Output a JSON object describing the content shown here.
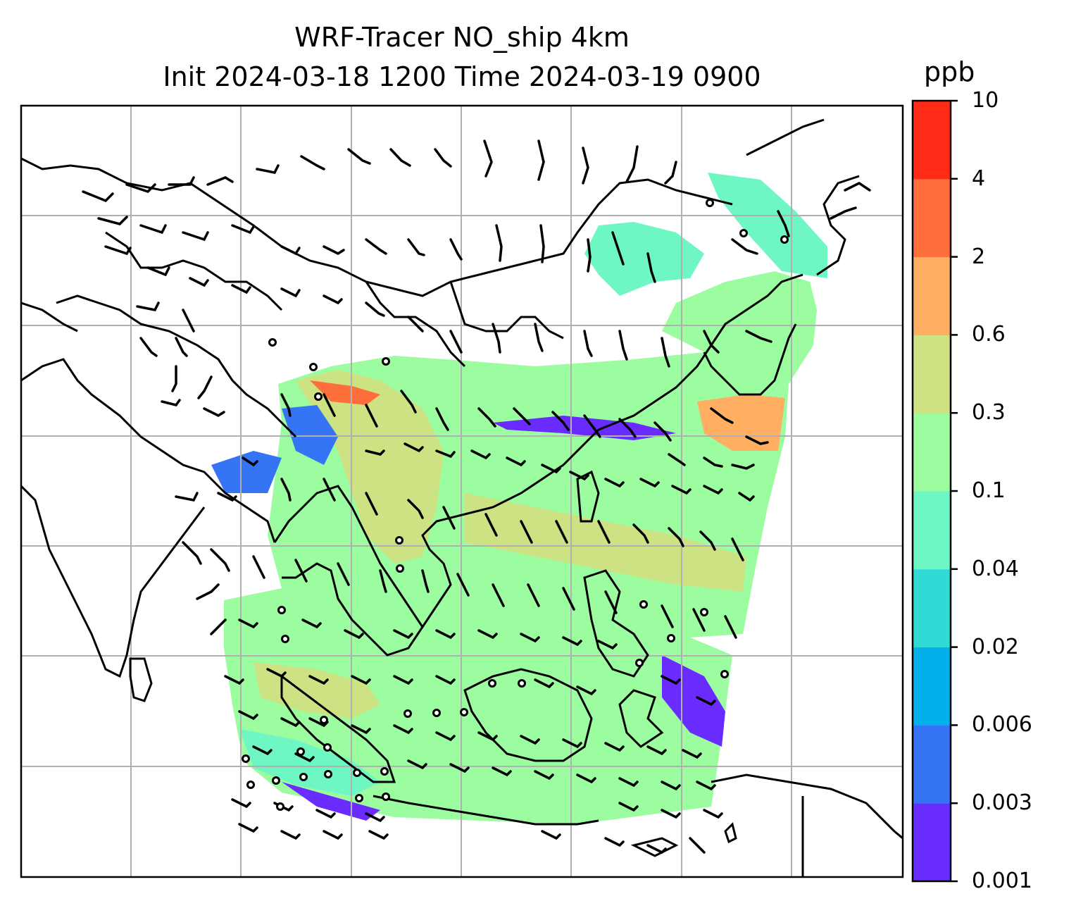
{
  "title": {
    "line1": "WRF-Tracer NO_ship 4km",
    "line2": "Init 2024-03-18 1200 Time 2024-03-19 0900"
  },
  "colorbar": {
    "unit": "ppb",
    "levels": [
      "0.001",
      "0.003",
      "0.006",
      "0.02",
      "0.04",
      "0.1",
      "0.3",
      "0.6",
      "2",
      "4",
      "10"
    ],
    "colors": [
      "#6a2bff",
      "#3574f4",
      "#04b0ea",
      "#30dbd6",
      "#6ef7c2",
      "#9cfca0",
      "#cde283",
      "#ffae62",
      "#ff6f3b",
      "#ff2b16"
    ]
  },
  "map": {
    "gridlines": true,
    "layers": [
      "concentration-field",
      "coastlines",
      "country-borders",
      "wind-barbs",
      "calm-wind-circles"
    ]
  }
}
